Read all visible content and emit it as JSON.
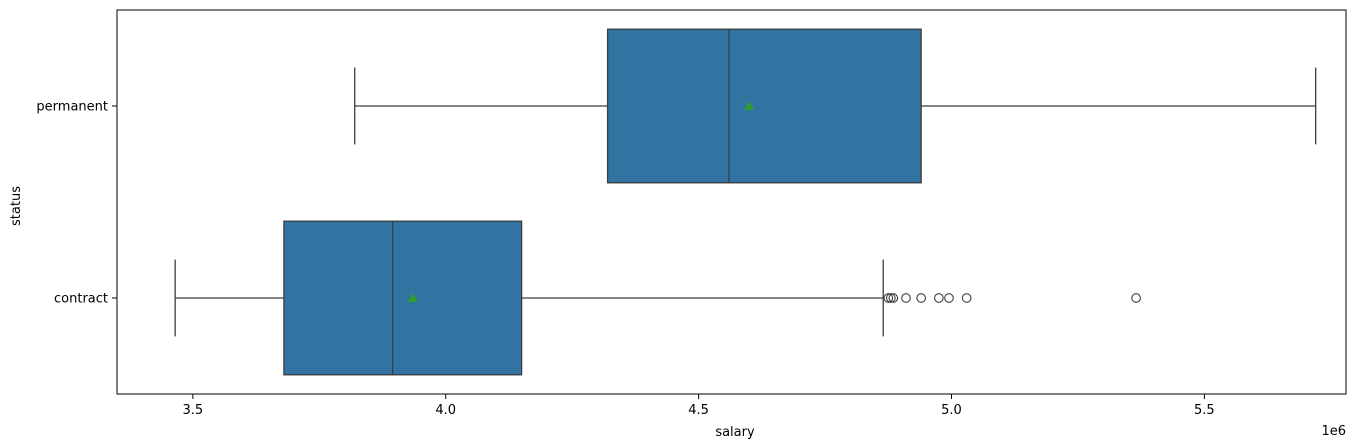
{
  "chart_data": {
    "type": "boxplot",
    "orientation": "horizontal",
    "xlabel": "salary",
    "ylabel": "status",
    "x_offset_label": "1e6",
    "xlim": [
      3.35,
      5.78
    ],
    "x_ticks": [
      3.5,
      4.0,
      4.5,
      5.0,
      5.5
    ],
    "x_tick_labels": [
      "3.5",
      "4.0",
      "4.5",
      "5.0",
      "5.5"
    ],
    "categories": [
      "permanent",
      "contract"
    ],
    "box_color": "#3274a1",
    "mean_color": "#2ca02c",
    "line_color": "#3d3d3d",
    "groups": [
      {
        "label": "permanent",
        "whisker_low": 3.82,
        "q1": 4.32,
        "median": 4.56,
        "q3": 4.94,
        "whisker_high": 5.72,
        "mean": 4.6,
        "outliers": []
      },
      {
        "label": "contract",
        "whisker_low": 3.465,
        "q1": 3.68,
        "median": 3.895,
        "q3": 4.15,
        "whisker_high": 4.865,
        "mean": 3.935,
        "outliers": [
          4.875,
          4.88,
          4.885,
          4.91,
          4.94,
          4.975,
          4.995,
          5.03,
          5.365
        ]
      }
    ]
  }
}
